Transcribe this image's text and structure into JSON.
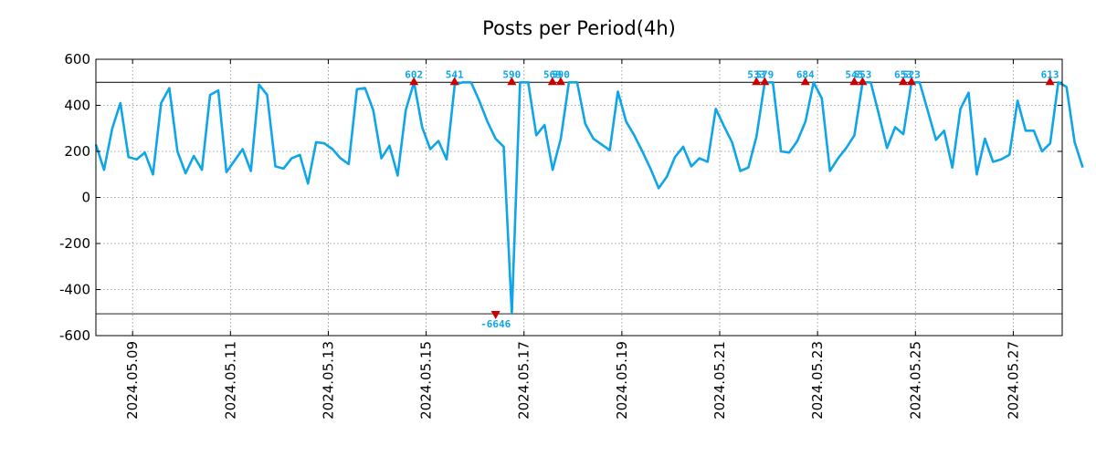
{
  "chart_data": {
    "type": "line",
    "title": "Posts per Period(4h)",
    "xlabel": "",
    "ylabel": "",
    "ylim": [
      -600,
      600
    ],
    "yticks": [
      600,
      400,
      200,
      0,
      -200,
      -400,
      -600
    ],
    "xlim": [
      0,
      19.75
    ],
    "xticks": [
      {
        "x": 0.75,
        "label": "2024.05.09"
      },
      {
        "x": 2.75,
        "label": "2024.05.11"
      },
      {
        "x": 4.75,
        "label": "2024.05.13"
      },
      {
        "x": 6.75,
        "label": "2024.05.15"
      },
      {
        "x": 8.75,
        "label": "2024.05.17"
      },
      {
        "x": 10.75,
        "label": "2024.05.19"
      },
      {
        "x": 12.75,
        "label": "2024.05.21"
      },
      {
        "x": 14.75,
        "label": "2024.05.23"
      },
      {
        "x": 16.75,
        "label": "2024.05.25"
      },
      {
        "x": 18.75,
        "label": "2024.05.27"
      }
    ],
    "grid": true,
    "thresholds": [
      500,
      -505
    ],
    "series": [
      {
        "name": "Posts",
        "color": "#0ea5e9",
        "x_start": 0,
        "x_step": 0.1667,
        "values": [
          230,
          120,
          300,
          410,
          175,
          165,
          195,
          100,
          410,
          475,
          200,
          105,
          180,
          120,
          445,
          465,
          110,
          160,
          210,
          115,
          490,
          445,
          135,
          125,
          170,
          185,
          60,
          240,
          235,
          210,
          170,
          145,
          470,
          475,
          380,
          170,
          225,
          95,
          380,
          500,
          305,
          210,
          245,
          165,
          490,
          500,
          500,
          420,
          330,
          255,
          220,
          -505,
          500,
          500,
          270,
          315,
          120,
          255,
          500,
          500,
          320,
          255,
          230,
          205,
          460,
          330,
          270,
          200,
          125,
          40,
          90,
          175,
          220,
          135,
          170,
          155,
          385,
          310,
          240,
          115,
          130,
          265,
          500,
          500,
          200,
          195,
          245,
          330,
          500,
          430,
          115,
          170,
          215,
          270,
          500,
          500,
          360,
          215,
          305,
          275,
          500,
          500,
          375,
          250,
          290,
          130,
          385,
          455,
          100,
          255,
          155,
          165,
          185,
          420,
          290,
          290,
          200,
          235,
          500,
          480,
          240,
          130
        ]
      }
    ],
    "peaks": [
      {
        "x": 6.5,
        "y": 500,
        "label": "602",
        "direction": "up"
      },
      {
        "x": 7.33,
        "y": 500,
        "label": "541",
        "direction": "up"
      },
      {
        "x": 8.5,
        "y": 500,
        "label": "590",
        "direction": "up"
      },
      {
        "x": 9.33,
        "y": 500,
        "label": "569",
        "direction": "up"
      },
      {
        "x": 9.5,
        "y": 500,
        "label": "590",
        "direction": "up"
      },
      {
        "x": 13.5,
        "y": 500,
        "label": "533",
        "direction": "up"
      },
      {
        "x": 13.67,
        "y": 500,
        "label": "579",
        "direction": "up"
      },
      {
        "x": 14.5,
        "y": 500,
        "label": "684",
        "direction": "up"
      },
      {
        "x": 15.5,
        "y": 500,
        "label": "545",
        "direction": "up"
      },
      {
        "x": 15.67,
        "y": 500,
        "label": "553",
        "direction": "up"
      },
      {
        "x": 16.5,
        "y": 500,
        "label": "653",
        "direction": "up"
      },
      {
        "x": 16.67,
        "y": 500,
        "label": "523",
        "direction": "up"
      },
      {
        "x": 19.5,
        "y": 500,
        "label": "613",
        "direction": "up"
      },
      {
        "x": 8.17,
        "y": -505,
        "label": "-6646",
        "direction": "down"
      }
    ],
    "marker_color": "#cc0000"
  }
}
